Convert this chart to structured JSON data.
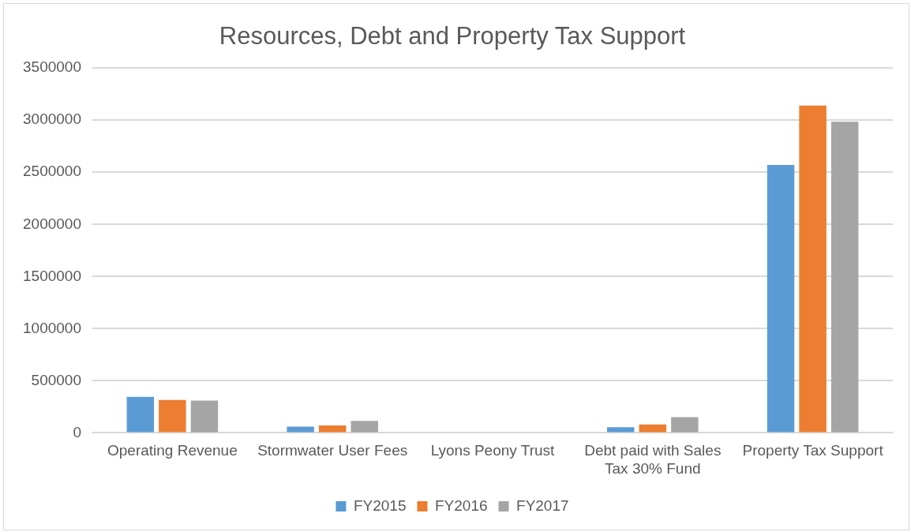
{
  "chart_data": {
    "type": "bar",
    "title": "Resources, Debt and Property Tax Support",
    "categories": [
      "Operating Revenue",
      "Stormwater User Fees",
      "Lyons Peony Trust",
      "Debt paid with Sales Tax 30% Fund",
      "Property Tax Support"
    ],
    "series": [
      {
        "name": "FY2015",
        "color": "#5b9bd5",
        "values": [
          345000,
          60000,
          0,
          55000,
          2570000
        ]
      },
      {
        "name": "FY2016",
        "color": "#ed7d31",
        "values": [
          315000,
          72000,
          0,
          80000,
          3140000
        ]
      },
      {
        "name": "FY2017",
        "color": "#a5a5a5",
        "values": [
          310000,
          115000,
          0,
          150000,
          2985000
        ]
      }
    ],
    "ylim": [
      0,
      3500000
    ],
    "yticks": [
      0,
      500000,
      1000000,
      1500000,
      2000000,
      2500000,
      3000000,
      3500000
    ],
    "grid": "y",
    "legend": "bottom"
  }
}
